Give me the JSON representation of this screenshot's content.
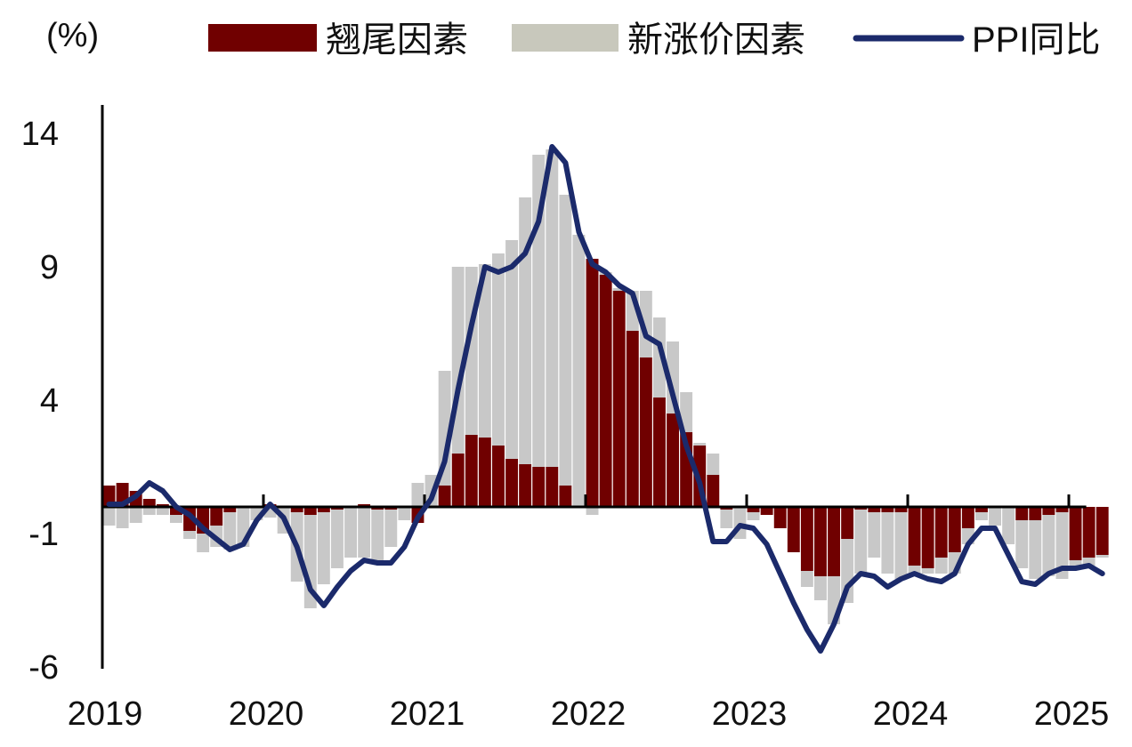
{
  "chart_data": {
    "type": "bar",
    "unit_label": "(%)",
    "y_ticks": [
      14,
      9,
      4,
      -1,
      -6
    ],
    "ylim": [
      -6,
      15
    ],
    "x_ticks": [
      "2019",
      "2020",
      "2021",
      "2022",
      "2023",
      "2024",
      "2025"
    ],
    "x_start": "2019-01",
    "grid": false,
    "legend_position": "top",
    "colors": {
      "tail": "#700000",
      "new": "#c8c8c8",
      "new_legend": "#c8c8bc",
      "ppi": "#1b2a6b",
      "axis": "#000000"
    },
    "series": [
      {
        "name": "翘尾因素",
        "kind": "bar",
        "values": [
          0.8,
          0.9,
          0.6,
          0.3,
          0.1,
          -0.3,
          -0.9,
          -1.0,
          -0.7,
          -0.2,
          0.0,
          0.0,
          0.1,
          0.0,
          -0.2,
          -0.3,
          -0.2,
          -0.1,
          0.0,
          0.1,
          -0.1,
          -0.1,
          0.0,
          -0.6,
          0.0,
          0.8,
          2.0,
          2.7,
          2.6,
          2.3,
          1.8,
          1.6,
          1.5,
          1.5,
          0.8,
          0.0,
          9.3,
          8.7,
          8.1,
          6.6,
          5.6,
          4.1,
          3.5,
          2.8,
          2.3,
          1.2,
          -0.1,
          0.0,
          -0.2,
          -0.3,
          -0.8,
          -1.7,
          -2.4,
          -2.6,
          -2.6,
          -1.2,
          -0.1,
          -0.2,
          -0.2,
          -0.2,
          -2.2,
          -2.3,
          -1.9,
          -1.7,
          -0.8,
          -0.2,
          0.0,
          0.0,
          -0.5,
          -0.5,
          -0.3,
          -0.2,
          -2.0,
          -1.9,
          -1.8
        ]
      },
      {
        "name": "新涨价因素",
        "kind": "bar",
        "values": [
          -0.7,
          -0.8,
          -0.6,
          -0.3,
          -0.3,
          -0.3,
          -0.3,
          -0.7,
          -0.8,
          -1.4,
          -1.5,
          -0.5,
          -0.4,
          -1.0,
          -2.6,
          -3.5,
          -2.7,
          -2.2,
          -1.9,
          -1.9,
          -2.0,
          -1.4,
          -0.5,
          0.9,
          1.2,
          4.3,
          7.0,
          6.3,
          6.5,
          7.2,
          8.2,
          10.0,
          11.7,
          11.9,
          10.9,
          10.2,
          -0.3,
          0.1,
          0.1,
          1.5,
          2.5,
          3.0,
          2.7,
          1.5,
          0.1,
          0.8,
          -0.7,
          -1.2,
          -0.3,
          0.0,
          0.0,
          0.0,
          -0.6,
          -0.9,
          -1.8,
          -2.4,
          -2.4,
          -1.7,
          -2.3,
          -2.5,
          -0.4,
          -0.2,
          -0.6,
          -0.8,
          -0.6,
          -0.3,
          -0.7,
          -1.4,
          -1.8,
          -2.2,
          -2.3,
          -2.5,
          -0.2,
          -0.3,
          -0.1
        ]
      },
      {
        "name": "PPI同比",
        "kind": "line",
        "values": [
          0.1,
          0.1,
          0.4,
          0.9,
          0.6,
          0.0,
          -0.3,
          -0.8,
          -1.2,
          -1.6,
          -1.4,
          -0.5,
          0.1,
          -0.4,
          -1.5,
          -3.1,
          -3.7,
          -3.0,
          -2.4,
          -2.0,
          -2.1,
          -2.1,
          -1.5,
          -0.4,
          0.3,
          1.7,
          4.4,
          6.8,
          9.0,
          8.8,
          9.0,
          9.5,
          10.7,
          13.5,
          12.9,
          10.3,
          9.1,
          8.8,
          8.3,
          8.0,
          6.4,
          6.1,
          4.2,
          2.3,
          0.9,
          -1.3,
          -1.3,
          -0.7,
          -0.8,
          -1.4,
          -2.5,
          -3.6,
          -4.6,
          -5.4,
          -4.4,
          -3.0,
          -2.5,
          -2.6,
          -3.0,
          -2.7,
          -2.5,
          -2.7,
          -2.8,
          -2.5,
          -1.4,
          -0.8,
          -0.8,
          -1.8,
          -2.8,
          -2.9,
          -2.5,
          -2.3,
          -2.3,
          -2.2,
          -2.5
        ]
      }
    ]
  }
}
